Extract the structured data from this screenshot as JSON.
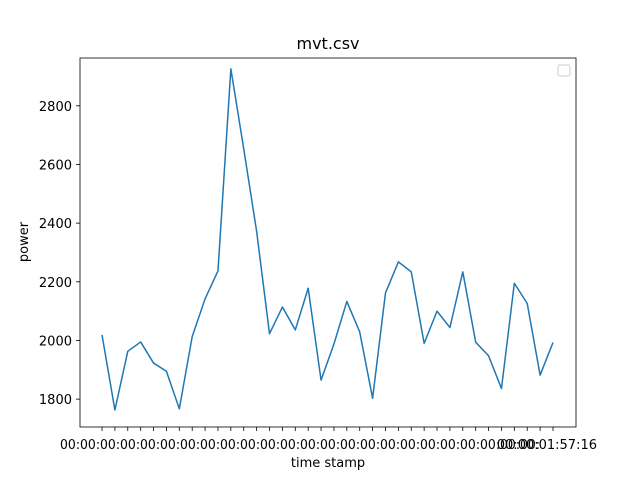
{
  "chart_data": {
    "type": "line",
    "title": "mvt.csv",
    "xlabel": "time stamp",
    "ylabel": "power",
    "x_tick_label_visible": "00:00:01:57:16",
    "yticks": [
      1800,
      2000,
      2200,
      2400,
      2600,
      2800
    ],
    "ylim": [
      1705,
      2963
    ],
    "grid": false,
    "legend": {
      "placement": "top-right",
      "entries": []
    },
    "series": [
      {
        "color": "#1f77b4",
        "values": [
          2019,
          1763,
          1963,
          1995,
          1923,
          1895,
          1767,
          2013,
          2142,
          2237,
          2926,
          2653,
          2372,
          2023,
          2114,
          2036,
          2178,
          1865,
          1988,
          2133,
          2029,
          1803,
          2162,
          2268,
          2234,
          1990,
          2100,
          2044,
          2234,
          1994,
          1948,
          1836,
          2195,
          2126,
          1882,
          1993
        ]
      }
    ]
  }
}
